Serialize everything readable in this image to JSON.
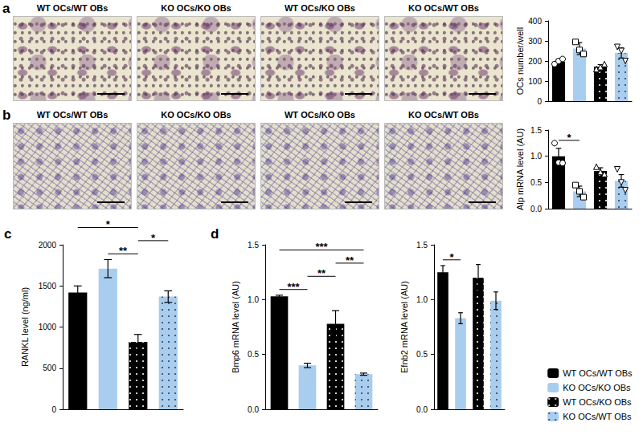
{
  "figure": {
    "panels": [
      {
        "letter": "a",
        "images": [
          "WT OCs/WT OBs",
          "KO OCs/KO OBs",
          "WT OCs/KO OBs",
          "KO OCs/WT OBs"
        ]
      },
      {
        "letter": "b",
        "images": [
          "WT OCs/WT OBs",
          "KO OCs/KO OBs",
          "WT OCs/KO OBs",
          "KO OCs/WT OBs"
        ]
      },
      {
        "letter": "c"
      },
      {
        "letter": "d"
      }
    ]
  },
  "chart_data": [
    {
      "type": "bar",
      "ylabel": "OCs number/well",
      "ylim": [
        0,
        400
      ],
      "yticks": [
        0,
        100,
        200,
        300,
        400
      ],
      "grid": false,
      "tick_labels": "y",
      "series": [
        {
          "name": "WT OCs/WT OBs",
          "color": "#000000",
          "line_style": "solid",
          "marker": "circle",
          "values": [
            197
          ],
          "errors": [
            13
          ],
          "points": [
            185,
            200,
            210
          ]
        },
        {
          "name": "KO OCs/KO OBs",
          "color": "#a9cdee",
          "line_style": "solid",
          "marker": "square",
          "values": [
            262
          ],
          "errors": [
            30
          ],
          "points": [
            295,
            255,
            235
          ]
        },
        {
          "name": "WT OCs/KO OBs",
          "color": "#000000",
          "line_style": "dotted",
          "marker": "triangle",
          "values": [
            172
          ],
          "errors": [
            10
          ],
          "points": [
            160,
            170,
            185
          ]
        },
        {
          "name": "KO OCs/WT OBs",
          "color": "#a9cdee",
          "line_style": "dotted",
          "marker": "inverted_triangle",
          "values": [
            240
          ],
          "errors": [
            25
          ],
          "points": [
            270,
            250,
            200
          ]
        }
      ],
      "significance": []
    },
    {
      "type": "bar",
      "ylabel": "Alp mRNA level (AU)",
      "ylim": [
        0,
        1.5
      ],
      "yticks": [
        {
          "value": 0,
          "label": "0.0"
        },
        {
          "value": 0.5,
          "label": "0.5"
        },
        {
          "value": 1,
          "label": "1.0"
        },
        {
          "value": 1.5,
          "label": "1.5"
        }
      ],
      "grid": false,
      "tick_labels": "y",
      "series": [
        {
          "name": "WT OCs/WT OBs",
          "color": "#000000",
          "line_style": "solid",
          "marker": "circle",
          "values": [
            1.0
          ],
          "errors": [
            0.15
          ],
          "points": [
            1.25,
            0.88,
            0.87
          ]
        },
        {
          "name": "KO OCs/KO OBs",
          "color": "#a9cdee",
          "line_style": "solid",
          "marker": "square",
          "values": [
            0.33
          ],
          "errors": [
            0.1
          ],
          "points": [
            0.45,
            0.33,
            0.22
          ]
        },
        {
          "name": "WT OCs/KO OBs",
          "color": "#000000",
          "line_style": "dotted",
          "marker": "triangle",
          "values": [
            0.72
          ],
          "errors": [
            0.06
          ],
          "points": [
            0.8,
            0.7,
            0.66
          ]
        },
        {
          "name": "KO OCs/WT OBs",
          "color": "#a9cdee",
          "line_style": "dotted",
          "marker": "inverted_triangle",
          "values": [
            0.53
          ],
          "errors": [
            0.12
          ],
          "points": [
            0.75,
            0.5,
            0.35
          ]
        }
      ],
      "significance": [
        {
          "from": 0,
          "to": 1,
          "label": "*"
        }
      ]
    },
    {
      "type": "bar",
      "ylabel": "RANKL level (ng/ml)",
      "ylim": [
        0,
        2000
      ],
      "yticks": [
        0,
        500,
        1000,
        1500,
        2000
      ],
      "grid": false,
      "tick_labels": "y",
      "series": [
        {
          "name": "WT OCs/WT OBs",
          "color": "#000000",
          "line_style": "solid",
          "values": [
            1420
          ],
          "errors": [
            80
          ]
        },
        {
          "name": "KO OCs/KO OBs",
          "color": "#a9cdee",
          "line_style": "solid",
          "values": [
            1710
          ],
          "errors": [
            110
          ]
        },
        {
          "name": "WT OCs/KO OBs",
          "color": "#000000",
          "line_style": "dotted",
          "values": [
            820
          ],
          "errors": [
            90
          ]
        },
        {
          "name": "KO OCs/WT OBs",
          "color": "#a9cdee",
          "line_style": "dotted",
          "values": [
            1370
          ],
          "errors": [
            70
          ]
        }
      ],
      "significance": [
        {
          "from": 0,
          "to": 2,
          "label": "*"
        },
        {
          "from": 1,
          "to": 2,
          "label": "**"
        },
        {
          "from": 2,
          "to": 3,
          "label": "*"
        }
      ]
    },
    {
      "type": "bar",
      "ylabel": "Bmp6 mRNA level (AU)",
      "ylim": [
        0,
        1.5
      ],
      "yticks": [
        {
          "value": 0,
          "label": "0.0"
        },
        {
          "value": 0.5,
          "label": "0.5"
        },
        {
          "value": 1,
          "label": "1.0"
        },
        {
          "value": 1.5,
          "label": "1.5"
        }
      ],
      "grid": false,
      "tick_labels": "y",
      "series": [
        {
          "name": "WT OCs/WT OBs",
          "color": "#000000",
          "line_style": "solid",
          "values": [
            1.03
          ],
          "errors": [
            0.01
          ]
        },
        {
          "name": "KO OCs/KO OBs",
          "color": "#a9cdee",
          "line_style": "solid",
          "values": [
            0.4
          ],
          "errors": [
            0.02
          ]
        },
        {
          "name": "WT OCs/KO OBs",
          "color": "#000000",
          "line_style": "dotted",
          "values": [
            0.78
          ],
          "errors": [
            0.12
          ]
        },
        {
          "name": "KO OCs/WT OBs",
          "color": "#a9cdee",
          "line_style": "dotted",
          "values": [
            0.32
          ],
          "errors": [
            0.01
          ]
        }
      ],
      "significance": [
        {
          "from": 0,
          "to": 1,
          "label": "***"
        },
        {
          "from": 0,
          "to": 3,
          "label": "***"
        },
        {
          "from": 1,
          "to": 2,
          "label": "**"
        },
        {
          "from": 2,
          "to": 3,
          "label": "**"
        }
      ]
    },
    {
      "type": "bar",
      "ylabel": "Efnb2 mRNA level (AU)",
      "ylim": [
        0,
        1.5
      ],
      "yticks": [
        {
          "value": 0,
          "label": "0.0"
        },
        {
          "value": 0.5,
          "label": "0.5"
        },
        {
          "value": 1,
          "label": "1.0"
        },
        {
          "value": 1.5,
          "label": "1.5"
        }
      ],
      "grid": false,
      "tick_labels": "y",
      "legend": "bottom right",
      "series": [
        {
          "name": "WT OCs/WT OBs",
          "color": "#000000",
          "line_style": "solid",
          "values": [
            1.25
          ],
          "errors": [
            0.06
          ]
        },
        {
          "name": "KO OCs/KO OBs",
          "color": "#a9cdee",
          "line_style": "solid",
          "values": [
            0.83
          ],
          "errors": [
            0.05
          ]
        },
        {
          "name": "WT OCs/KO OBs",
          "color": "#000000",
          "line_style": "dotted",
          "values": [
            1.2
          ],
          "errors": [
            0.12
          ]
        },
        {
          "name": "KO OCs/WT OBs",
          "color": "#a9cdee",
          "line_style": "dotted",
          "values": [
            0.99
          ],
          "errors": [
            0.08
          ]
        }
      ],
      "significance": [
        {
          "from": 0,
          "to": 1,
          "label": "*"
        }
      ]
    }
  ]
}
